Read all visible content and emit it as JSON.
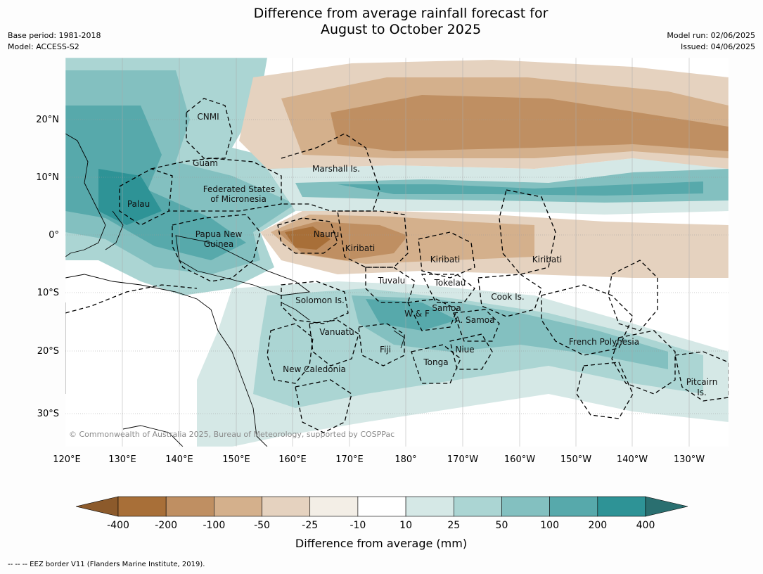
{
  "title": {
    "line1": "Difference from average rainfall forecast for",
    "line2": "August to October 2025"
  },
  "meta": {
    "base_period": "Base period: 1981-2018",
    "model": "Model: ACCESS-S2",
    "model_run": "Model run: 02/06/2025",
    "issued": "Issued: 04/06/2025"
  },
  "axes": {
    "lon_ticks": [
      "120°E",
      "130°E",
      "140°E",
      "150°E",
      "160°E",
      "170°E",
      "180°",
      "170°W",
      "160°W",
      "150°W",
      "140°W",
      "130°W"
    ],
    "lat_ticks": [
      "20°N",
      "10°N",
      "0°",
      "10°S",
      "20°S",
      "30°S"
    ]
  },
  "places": [
    {
      "name": "CNMI"
    },
    {
      "name": "Guam"
    },
    {
      "name": "Marshall Is."
    },
    {
      "name": "Federated States"
    },
    {
      "name": "of Micronesia"
    },
    {
      "name": "Palau"
    },
    {
      "name": "Papua New"
    },
    {
      "name": "Guinea"
    },
    {
      "name": "Nauru"
    },
    {
      "name": "Kiribati"
    },
    {
      "name": "Kiribati"
    },
    {
      "name": "Kiribati"
    },
    {
      "name": "Tuvalu"
    },
    {
      "name": "Tokelau"
    },
    {
      "name": "Cook Is."
    },
    {
      "name": "Solomon Is."
    },
    {
      "name": "Samoa"
    },
    {
      "name": "W & F"
    },
    {
      "name": "A. Samoa"
    },
    {
      "name": "Vanuatu"
    },
    {
      "name": "Fiji"
    },
    {
      "name": "Niue"
    },
    {
      "name": "Tonga"
    },
    {
      "name": "French Polynesia"
    },
    {
      "name": "New Caledonia"
    },
    {
      "name": "Pitcairn"
    },
    {
      "name": "Is."
    }
  ],
  "copyright": "© Commonwealth of Australia 2025, Bureau of Meteorology, supported by COSPPac",
  "colorbar": {
    "title": "Difference from average (mm)",
    "tick_labels": [
      "-400",
      "-200",
      "-100",
      "-50",
      "-25",
      "-10",
      "10",
      "25",
      "50",
      "100",
      "200",
      "400"
    ],
    "colors": [
      "#8c5a2b",
      "#a86f38",
      "#bf8f62",
      "#d4b08c",
      "#e5d2bf",
      "#f3eee6",
      "#ffffff",
      "#d5e8e6",
      "#abd5d3",
      "#83c0c0",
      "#57a9ab",
      "#2e9396",
      "#2a6f70"
    ]
  },
  "footer": "--  --  -- EEZ border V11 (Flanders Marine Institute, 2019)."
}
